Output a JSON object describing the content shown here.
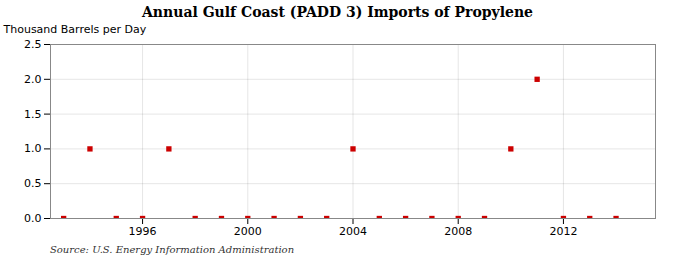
{
  "chart_data": {
    "type": "scatter",
    "title": "Annual Gulf Coast (PADD 3) Imports of Propylene",
    "ylabel": "Thousand Barrels per Day",
    "source": "Source: U.S. Energy Information Administration",
    "x": [
      1993,
      1994,
      1995,
      1996,
      1997,
      1998,
      1999,
      2000,
      2001,
      2002,
      2003,
      2004,
      2005,
      2006,
      2007,
      2008,
      2009,
      2010,
      2011,
      2012,
      2013,
      2014
    ],
    "values": [
      0.0,
      1.0,
      0.0,
      0.0,
      1.0,
      0.0,
      0.0,
      0.0,
      0.0,
      0.0,
      0.0,
      1.0,
      0.0,
      0.0,
      0.0,
      0.0,
      0.0,
      1.0,
      2.0,
      0.0,
      0.0,
      0.0
    ],
    "color": "#cc0000",
    "marker": "square",
    "xlim": [
      1992.5,
      2015.5
    ],
    "xticks": [
      1996,
      2000,
      2004,
      2008,
      2012
    ],
    "ylim": [
      0.0,
      2.5
    ],
    "yticks": [
      {
        "value": 0.0,
        "label": "0.0"
      },
      0.5,
      {
        "value": 1.0,
        "label": "1.0"
      },
      1.5,
      {
        "value": 2.0,
        "label": "2.0"
      },
      2.5
    ],
    "grid": true
  }
}
